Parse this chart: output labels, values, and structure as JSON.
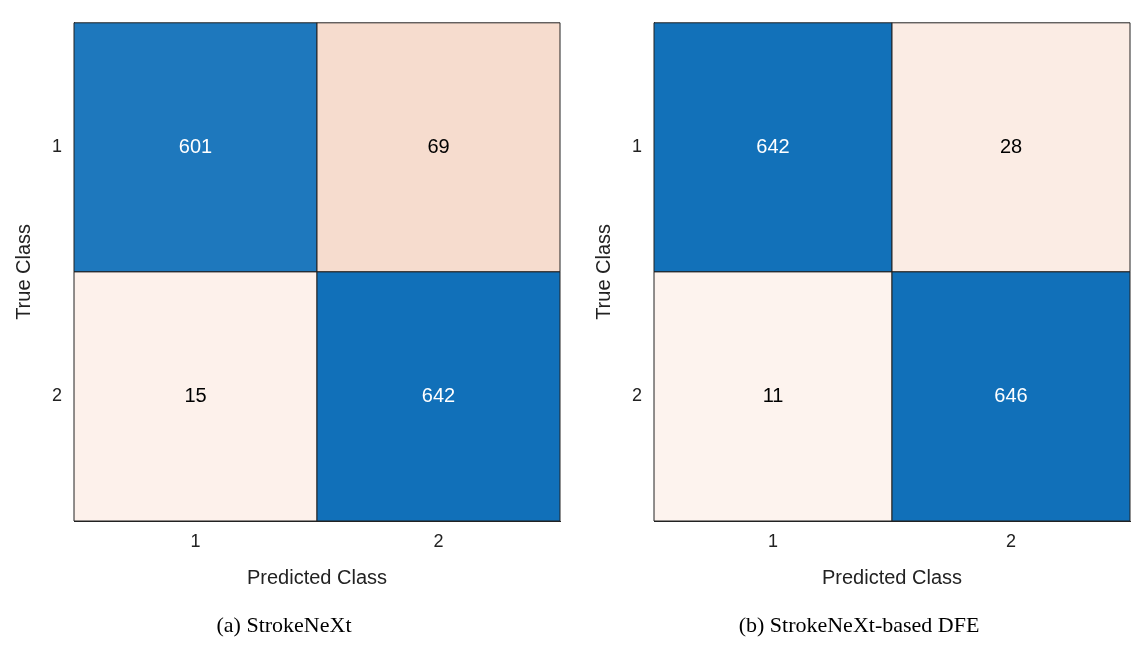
{
  "chart_data": [
    {
      "type": "heatmap",
      "title": "(a) StrokeNeXt",
      "xlabel": "Predicted Class",
      "ylabel": "True Class",
      "categories": [
        "1",
        "2"
      ],
      "y_categories": [
        "1",
        "2"
      ],
      "cells": [
        [
          601,
          69
        ],
        [
          15,
          642
        ]
      ],
      "data_labels": true
    },
    {
      "type": "heatmap",
      "title": "(b) StrokeNeXt-based DFE",
      "xlabel": "Predicted Class",
      "ylabel": "True Class",
      "categories": [
        "1",
        "2"
      ],
      "y_categories": [
        "1",
        "2"
      ],
      "cells": [
        [
          642,
          28
        ],
        [
          11,
          646
        ]
      ],
      "data_labels": true
    }
  ]
}
